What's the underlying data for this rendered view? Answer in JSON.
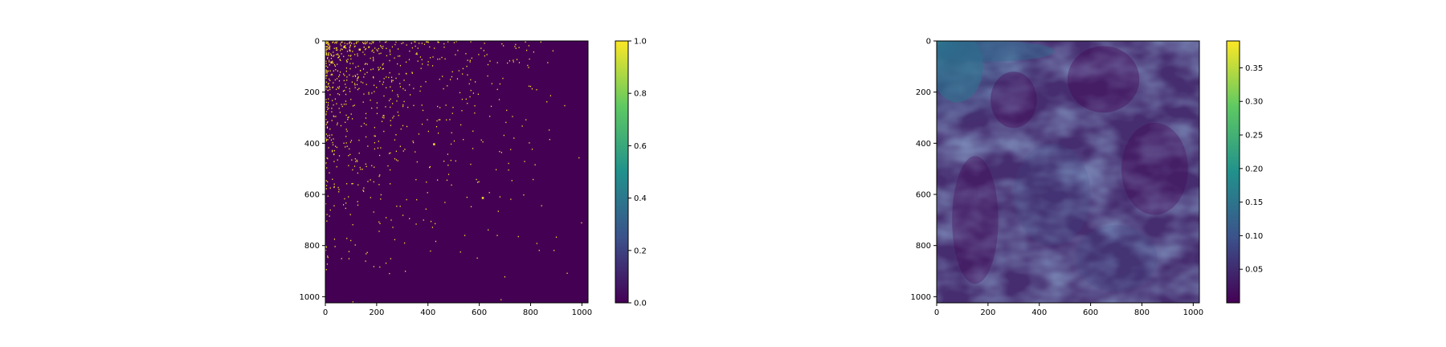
{
  "chart_data": [
    {
      "type": "heatmap",
      "title": "",
      "xlabel": "",
      "ylabel": "",
      "xlim": [
        0,
        1024
      ],
      "ylim": [
        1024,
        0
      ],
      "x_ticks": [
        "0",
        "200",
        "400",
        "600",
        "800",
        "1000"
      ],
      "y_ticks": [
        "0",
        "200",
        "400",
        "600",
        "800",
        "1000"
      ],
      "x_tick_values": [
        0,
        200,
        400,
        600,
        800,
        1000
      ],
      "y_tick_values": [
        0,
        200,
        400,
        600,
        800,
        1000
      ],
      "colormap": "viridis",
      "value_range": [
        0.0,
        1.0
      ],
      "colorbar_ticks": [
        "0.0",
        "0.2",
        "0.4",
        "0.6",
        "0.8",
        "1.0"
      ],
      "colorbar_tick_values": [
        0.0,
        0.2,
        0.4,
        0.6,
        0.8,
        1.0
      ],
      "description_values": {
        "background_value": 0.0,
        "point_value": 1.0,
        "density_decreases_toward": "bottom-right"
      },
      "grid": false
    },
    {
      "type": "heatmap",
      "title": "",
      "xlabel": "",
      "ylabel": "",
      "xlim": [
        0,
        1024
      ],
      "ylim": [
        1024,
        0
      ],
      "x_ticks": [
        "0",
        "200",
        "400",
        "600",
        "800",
        "1000"
      ],
      "y_ticks": [
        "0",
        "200",
        "400",
        "600",
        "800",
        "1000"
      ],
      "x_tick_values": [
        0,
        200,
        400,
        600,
        800,
        1000
      ],
      "y_tick_values": [
        0,
        200,
        400,
        600,
        800,
        1000
      ],
      "colormap": "viridis",
      "value_range": [
        0.0,
        0.39
      ],
      "colorbar_ticks": [
        "0.05",
        "0.10",
        "0.15",
        "0.20",
        "0.25",
        "0.30",
        "0.35"
      ],
      "colorbar_tick_values": [
        0.05,
        0.1,
        0.15,
        0.2,
        0.25,
        0.3,
        0.35
      ],
      "grid": false
    }
  ],
  "colors": {
    "viridis_0": "#440154",
    "viridis_25": "#3b528b",
    "viridis_50": "#21918c",
    "viridis_75": "#5ec962",
    "viridis_100": "#fde725"
  }
}
